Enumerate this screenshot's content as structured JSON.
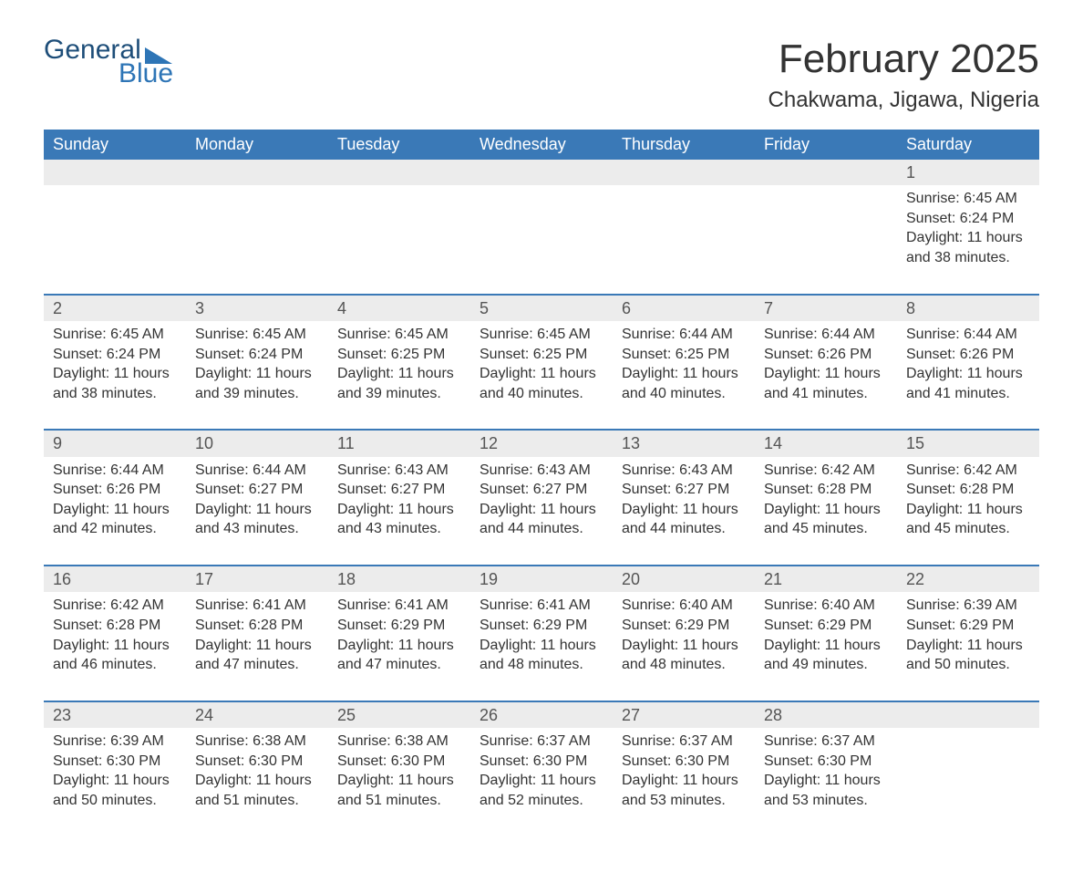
{
  "logo": {
    "word1": "General",
    "word2": "Blue",
    "accent_color": "#2e75b6",
    "dark_color": "#1e4e79"
  },
  "header": {
    "title": "February 2025",
    "location": "Chakwama, Jigawa, Nigeria"
  },
  "colors": {
    "header_bg": "#3a79b7",
    "header_text": "#ffffff",
    "row_sep": "#3a79b7",
    "daynum_bg": "#ececec",
    "body_text": "#333333"
  },
  "columns": [
    "Sunday",
    "Monday",
    "Tuesday",
    "Wednesday",
    "Thursday",
    "Friday",
    "Saturday"
  ],
  "weeks": [
    [
      {
        "blank": true
      },
      {
        "blank": true
      },
      {
        "blank": true
      },
      {
        "blank": true
      },
      {
        "blank": true
      },
      {
        "blank": true
      },
      {
        "day": "1",
        "sunrise": "Sunrise: 6:45 AM",
        "sunset": "Sunset: 6:24 PM",
        "daylight": "Daylight: 11 hours and 38 minutes."
      }
    ],
    [
      {
        "day": "2",
        "sunrise": "Sunrise: 6:45 AM",
        "sunset": "Sunset: 6:24 PM",
        "daylight": "Daylight: 11 hours and 38 minutes."
      },
      {
        "day": "3",
        "sunrise": "Sunrise: 6:45 AM",
        "sunset": "Sunset: 6:24 PM",
        "daylight": "Daylight: 11 hours and 39 minutes."
      },
      {
        "day": "4",
        "sunrise": "Sunrise: 6:45 AM",
        "sunset": "Sunset: 6:25 PM",
        "daylight": "Daylight: 11 hours and 39 minutes."
      },
      {
        "day": "5",
        "sunrise": "Sunrise: 6:45 AM",
        "sunset": "Sunset: 6:25 PM",
        "daylight": "Daylight: 11 hours and 40 minutes."
      },
      {
        "day": "6",
        "sunrise": "Sunrise: 6:44 AM",
        "sunset": "Sunset: 6:25 PM",
        "daylight": "Daylight: 11 hours and 40 minutes."
      },
      {
        "day": "7",
        "sunrise": "Sunrise: 6:44 AM",
        "sunset": "Sunset: 6:26 PM",
        "daylight": "Daylight: 11 hours and 41 minutes."
      },
      {
        "day": "8",
        "sunrise": "Sunrise: 6:44 AM",
        "sunset": "Sunset: 6:26 PM",
        "daylight": "Daylight: 11 hours and 41 minutes."
      }
    ],
    [
      {
        "day": "9",
        "sunrise": "Sunrise: 6:44 AM",
        "sunset": "Sunset: 6:26 PM",
        "daylight": "Daylight: 11 hours and 42 minutes."
      },
      {
        "day": "10",
        "sunrise": "Sunrise: 6:44 AM",
        "sunset": "Sunset: 6:27 PM",
        "daylight": "Daylight: 11 hours and 43 minutes."
      },
      {
        "day": "11",
        "sunrise": "Sunrise: 6:43 AM",
        "sunset": "Sunset: 6:27 PM",
        "daylight": "Daylight: 11 hours and 43 minutes."
      },
      {
        "day": "12",
        "sunrise": "Sunrise: 6:43 AM",
        "sunset": "Sunset: 6:27 PM",
        "daylight": "Daylight: 11 hours and 44 minutes."
      },
      {
        "day": "13",
        "sunrise": "Sunrise: 6:43 AM",
        "sunset": "Sunset: 6:27 PM",
        "daylight": "Daylight: 11 hours and 44 minutes."
      },
      {
        "day": "14",
        "sunrise": "Sunrise: 6:42 AM",
        "sunset": "Sunset: 6:28 PM",
        "daylight": "Daylight: 11 hours and 45 minutes."
      },
      {
        "day": "15",
        "sunrise": "Sunrise: 6:42 AM",
        "sunset": "Sunset: 6:28 PM",
        "daylight": "Daylight: 11 hours and 45 minutes."
      }
    ],
    [
      {
        "day": "16",
        "sunrise": "Sunrise: 6:42 AM",
        "sunset": "Sunset: 6:28 PM",
        "daylight": "Daylight: 11 hours and 46 minutes."
      },
      {
        "day": "17",
        "sunrise": "Sunrise: 6:41 AM",
        "sunset": "Sunset: 6:28 PM",
        "daylight": "Daylight: 11 hours and 47 minutes."
      },
      {
        "day": "18",
        "sunrise": "Sunrise: 6:41 AM",
        "sunset": "Sunset: 6:29 PM",
        "daylight": "Daylight: 11 hours and 47 minutes."
      },
      {
        "day": "19",
        "sunrise": "Sunrise: 6:41 AM",
        "sunset": "Sunset: 6:29 PM",
        "daylight": "Daylight: 11 hours and 48 minutes."
      },
      {
        "day": "20",
        "sunrise": "Sunrise: 6:40 AM",
        "sunset": "Sunset: 6:29 PM",
        "daylight": "Daylight: 11 hours and 48 minutes."
      },
      {
        "day": "21",
        "sunrise": "Sunrise: 6:40 AM",
        "sunset": "Sunset: 6:29 PM",
        "daylight": "Daylight: 11 hours and 49 minutes."
      },
      {
        "day": "22",
        "sunrise": "Sunrise: 6:39 AM",
        "sunset": "Sunset: 6:29 PM",
        "daylight": "Daylight: 11 hours and 50 minutes."
      }
    ],
    [
      {
        "day": "23",
        "sunrise": "Sunrise: 6:39 AM",
        "sunset": "Sunset: 6:30 PM",
        "daylight": "Daylight: 11 hours and 50 minutes."
      },
      {
        "day": "24",
        "sunrise": "Sunrise: 6:38 AM",
        "sunset": "Sunset: 6:30 PM",
        "daylight": "Daylight: 11 hours and 51 minutes."
      },
      {
        "day": "25",
        "sunrise": "Sunrise: 6:38 AM",
        "sunset": "Sunset: 6:30 PM",
        "daylight": "Daylight: 11 hours and 51 minutes."
      },
      {
        "day": "26",
        "sunrise": "Sunrise: 6:37 AM",
        "sunset": "Sunset: 6:30 PM",
        "daylight": "Daylight: 11 hours and 52 minutes."
      },
      {
        "day": "27",
        "sunrise": "Sunrise: 6:37 AM",
        "sunset": "Sunset: 6:30 PM",
        "daylight": "Daylight: 11 hours and 53 minutes."
      },
      {
        "day": "28",
        "sunrise": "Sunrise: 6:37 AM",
        "sunset": "Sunset: 6:30 PM",
        "daylight": "Daylight: 11 hours and 53 minutes."
      },
      {
        "blank": true
      }
    ]
  ]
}
